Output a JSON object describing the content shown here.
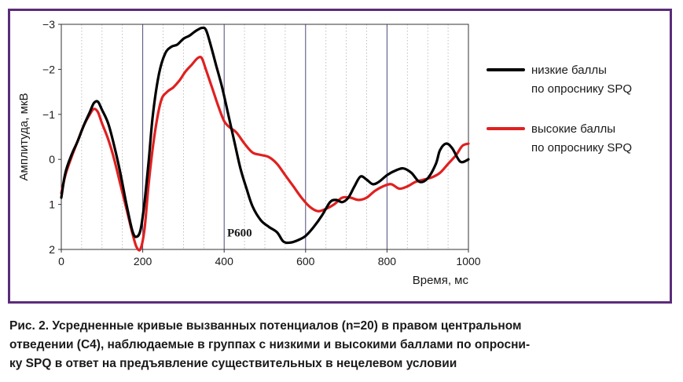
{
  "chart_data": {
    "type": "line",
    "xlabel": "Время, мс",
    "ylabel": "Амплитуда, мкВ",
    "xlim": [
      0,
      1000
    ],
    "ylim": [
      -3,
      2
    ],
    "y_inverted": true,
    "xticks": [
      "0",
      "200",
      "400",
      "600",
      "800",
      "1000"
    ],
    "yticks": [
      "−3",
      "−2",
      "−1",
      "0",
      "1",
      "2"
    ],
    "grid": "vertical dotted every 50 ms, solid every 200 ms",
    "legend_position": "right",
    "annotation": {
      "text": "P600",
      "x": 480,
      "y": 1.75
    },
    "series": [
      {
        "name": "низкие баллы по опроснику SPQ",
        "legend_lines": [
          "низкие баллы",
          "по опроснику SPQ"
        ],
        "color": "#000000",
        "x": [
          0,
          10,
          25,
          40,
          55,
          70,
          80,
          90,
          100,
          115,
          130,
          145,
          160,
          175,
          185,
          195,
          205,
          215,
          225,
          240,
          255,
          270,
          285,
          300,
          315,
          330,
          345,
          355,
          365,
          380,
          395,
          410,
          425,
          440,
          455,
          470,
          490,
          510,
          530,
          545,
          560,
          580,
          600,
          620,
          640,
          660,
          675,
          690,
          705,
          720,
          735,
          750,
          765,
          780,
          800,
          820,
          840,
          860,
          880,
          900,
          920,
          930,
          945,
          960,
          980,
          1000
        ],
        "y": [
          0.85,
          0.3,
          -0.1,
          -0.4,
          -0.75,
          -1.05,
          -1.25,
          -1.28,
          -1.1,
          -0.8,
          -0.3,
          0.3,
          1.0,
          1.6,
          1.72,
          1.55,
          0.9,
          0.0,
          -1.0,
          -1.9,
          -2.35,
          -2.5,
          -2.55,
          -2.68,
          -2.75,
          -2.85,
          -2.92,
          -2.88,
          -2.6,
          -2.1,
          -1.6,
          -1.0,
          -0.4,
          0.2,
          0.65,
          1.05,
          1.35,
          1.5,
          1.62,
          1.82,
          1.85,
          1.8,
          1.7,
          1.5,
          1.25,
          0.95,
          0.9,
          0.95,
          0.85,
          0.6,
          0.38,
          0.45,
          0.55,
          0.5,
          0.35,
          0.25,
          0.2,
          0.3,
          0.5,
          0.42,
          0.1,
          -0.2,
          -0.35,
          -0.25,
          0.05,
          0.0
        ]
      },
      {
        "name": "высокие баллы по опроснику SPQ",
        "legend_lines": [
          "высокие баллы",
          "по опроснику SPQ"
        ],
        "color": "#e02020",
        "x": [
          0,
          10,
          25,
          40,
          55,
          70,
          80,
          90,
          100,
          115,
          130,
          145,
          160,
          175,
          185,
          195,
          205,
          215,
          230,
          245,
          260,
          275,
          290,
          305,
          320,
          335,
          345,
          355,
          370,
          385,
          400,
          415,
          430,
          450,
          470,
          490,
          510,
          530,
          550,
          570,
          590,
          610,
          630,
          650,
          670,
          690,
          710,
          730,
          750,
          770,
          790,
          810,
          830,
          850,
          870,
          890,
          910,
          930,
          950,
          970,
          985,
          1000
        ],
        "y": [
          0.75,
          0.35,
          -0.05,
          -0.4,
          -0.75,
          -1.0,
          -1.12,
          -1.05,
          -0.8,
          -0.45,
          0.0,
          0.55,
          1.1,
          1.65,
          1.95,
          1.98,
          1.5,
          0.5,
          -0.6,
          -1.3,
          -1.5,
          -1.6,
          -1.75,
          -1.95,
          -2.1,
          -2.25,
          -2.25,
          -2.0,
          -1.6,
          -1.2,
          -0.85,
          -0.7,
          -0.6,
          -0.35,
          -0.15,
          -0.1,
          -0.05,
          0.1,
          0.35,
          0.6,
          0.85,
          1.05,
          1.15,
          1.1,
          1.0,
          0.85,
          0.85,
          0.9,
          0.85,
          0.7,
          0.6,
          0.55,
          0.65,
          0.6,
          0.5,
          0.45,
          0.4,
          0.3,
          0.1,
          -0.1,
          -0.3,
          -0.35
        ]
      }
    ]
  },
  "caption": {
    "lines": [
      "Рис. 2. Усредненные кривые вызванных потенциалов (n=20) в правом центральном",
      "отведении (С4), наблюдаемые в группах с низкими и высокими баллами по опросни-",
      "ку SPQ в ответ на предъявление существительных в нецелевом условии"
    ]
  }
}
